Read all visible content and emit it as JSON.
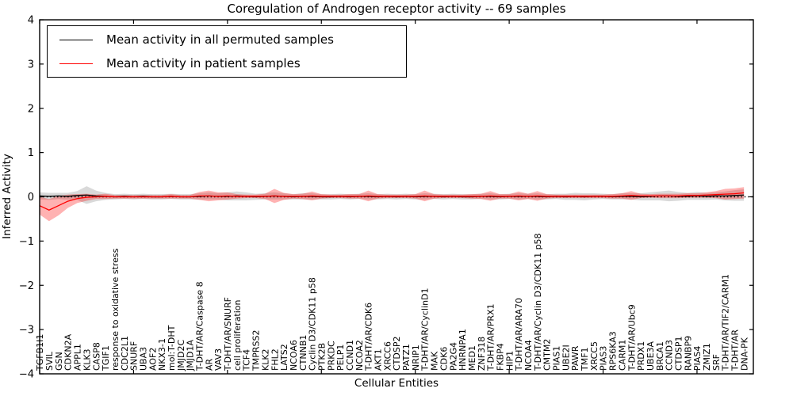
{
  "chart_data": {
    "type": "line",
    "title": "Coregulation of Androgen receptor activity -- 69 samples",
    "xlabel": "Cellular Entities",
    "ylabel": "Inferred Activity",
    "ylim": [
      -4,
      4
    ],
    "grid": false,
    "legend_position": "upper left",
    "yticks": [
      {
        "v": 4,
        "label": "4"
      },
      {
        "v": 3,
        "label": "3"
      },
      {
        "v": 2,
        "label": "2"
      },
      {
        "v": 1,
        "label": "1"
      },
      {
        "v": 0,
        "label": "0"
      },
      {
        "v": -1,
        "label": "−1"
      },
      {
        "v": -2,
        "label": "−2"
      },
      {
        "v": -3,
        "label": "−3"
      },
      {
        "v": -4,
        "label": "−4"
      }
    ],
    "xticks_major": [
      0,
      10,
      20,
      30,
      40,
      50,
      60,
      70
    ],
    "zero_line": {
      "style": "dotted",
      "color": "#000000",
      "y": 0
    },
    "categories": [
      "TGFB1I1",
      "SVIL",
      "GSN",
      "CDKN2A",
      "APPL1",
      "KLK3",
      "CASP8",
      "TGIF1",
      "response to oxidative stress",
      "CDC2L1",
      "SNURF",
      "UBA3",
      "AOF2",
      "NKX3-1",
      "mol:T-DHT",
      "JMJD2C",
      "JMJD1A",
      "T-DHT/AR/Caspase 8",
      "AR",
      "VAV3",
      "T-DHT/AR/SNURF",
      "cell proliferation",
      "TCF4",
      "TMPRSS2",
      "KLK2",
      "FHL2",
      "LATS2",
      "NCOA6",
      "CTNNB1",
      "Cyclin D3/CDK11 p58",
      "PTK2B",
      "PRKDC",
      "PELP1",
      "CCND1",
      "NCOA2",
      "T-DHT/AR/CDK6",
      "AKT1",
      "XRCC6",
      "CTDSP2",
      "PATZ1",
      "NRIP1",
      "T-DHT/AR/CyclinD1",
      "MAK",
      "CDK6",
      "PA2G4",
      "HNRNPA1",
      "MED1",
      "ZNF318",
      "T-DHT/AR/PRX1",
      "FKBP4",
      "HIP1",
      "T-DHT/AR/ARA70",
      "NCOA4",
      "T-DHT/AR/Cyclin D3/CDK11 p58",
      "CMTM2",
      "PIAS1",
      "UBE2I",
      "PAWR",
      "TMF1",
      "XRCC5",
      "PIAS3",
      "RPS6KA3",
      "CARM1",
      "T-DHT/AR/Ubc9",
      "PRDX1",
      "UBE3A",
      "BRCA1",
      "CCND3",
      "CTDSP1",
      "RANBP9",
      "PIAS4",
      "ZMIZ1",
      "SRF",
      "T-DHT/AR/TIF2/CARM1",
      "T-DHT/AR",
      "DNA-PK"
    ],
    "series": [
      {
        "name": "Mean activity in all permuted samples",
        "color": "#000000",
        "band_color": "#888888",
        "band_opacity": 0.32,
        "values": [
          0.02,
          0.01,
          0.02,
          0.01,
          0.03,
          0.04,
          0.02,
          0.01,
          0.0,
          0.01,
          0.0,
          0.01,
          0.0,
          0.0,
          0.01,
          0.0,
          0.0,
          0.01,
          0.02,
          0.01,
          0.01,
          0.02,
          0.01,
          0.0,
          0.01,
          0.02,
          0.01,
          0.0,
          0.01,
          0.01,
          0.0,
          0.0,
          0.01,
          0.0,
          0.01,
          0.01,
          0.0,
          0.01,
          0.0,
          0.01,
          0.0,
          0.01,
          0.01,
          0.0,
          0.01,
          0.0,
          0.0,
          0.01,
          0.01,
          0.0,
          0.01,
          0.01,
          0.01,
          0.01,
          0.0,
          0.01,
          0.0,
          0.01,
          0.0,
          0.01,
          0.01,
          0.0,
          0.01,
          0.01,
          0.0,
          0.01,
          0.02,
          0.02,
          0.01,
          0.01,
          0.02,
          0.01,
          0.02,
          0.02,
          0.03,
          0.04
        ],
        "band_halfwidth": [
          0.08,
          0.08,
          0.07,
          0.08,
          0.1,
          0.2,
          0.12,
          0.08,
          0.06,
          0.06,
          0.06,
          0.06,
          0.06,
          0.06,
          0.06,
          0.06,
          0.06,
          0.07,
          0.08,
          0.07,
          0.09,
          0.1,
          0.09,
          0.07,
          0.07,
          0.08,
          0.07,
          0.06,
          0.07,
          0.07,
          0.06,
          0.06,
          0.06,
          0.06,
          0.06,
          0.07,
          0.06,
          0.06,
          0.06,
          0.06,
          0.06,
          0.07,
          0.06,
          0.06,
          0.06,
          0.06,
          0.06,
          0.06,
          0.07,
          0.06,
          0.06,
          0.07,
          0.06,
          0.07,
          0.06,
          0.06,
          0.07,
          0.08,
          0.08,
          0.07,
          0.06,
          0.06,
          0.07,
          0.07,
          0.08,
          0.09,
          0.1,
          0.12,
          0.1,
          0.08,
          0.09,
          0.08,
          0.08,
          0.1,
          0.12,
          0.13
        ]
      },
      {
        "name": "Mean activity in patient samples",
        "color": "#ff0000",
        "band_color": "#ff0000",
        "band_opacity": 0.3,
        "values": [
          -0.2,
          -0.3,
          -0.2,
          -0.1,
          -0.04,
          -0.01,
          0.0,
          0.01,
          0.0,
          0.0,
          0.0,
          0.0,
          0.0,
          0.0,
          0.01,
          0.0,
          0.0,
          0.02,
          0.02,
          0.01,
          0.02,
          0.01,
          0.01,
          0.01,
          0.01,
          0.02,
          0.01,
          0.01,
          0.01,
          0.02,
          0.01,
          0.01,
          0.01,
          0.01,
          0.01,
          0.02,
          0.01,
          0.01,
          0.01,
          0.01,
          0.01,
          0.02,
          0.01,
          0.01,
          0.01,
          0.01,
          0.01,
          0.01,
          0.02,
          0.01,
          0.01,
          0.02,
          0.01,
          0.02,
          0.01,
          0.01,
          0.01,
          0.01,
          0.01,
          0.01,
          0.01,
          0.01,
          0.02,
          0.03,
          0.02,
          0.02,
          0.02,
          0.02,
          0.02,
          0.03,
          0.03,
          0.04,
          0.05,
          0.06,
          0.07,
          0.09
        ],
        "band_halfwidth": [
          0.2,
          0.25,
          0.22,
          0.15,
          0.1,
          0.08,
          0.05,
          0.06,
          0.04,
          0.04,
          0.04,
          0.04,
          0.04,
          0.04,
          0.05,
          0.04,
          0.04,
          0.09,
          0.12,
          0.09,
          0.08,
          0.05,
          0.04,
          0.04,
          0.06,
          0.16,
          0.08,
          0.05,
          0.06,
          0.1,
          0.05,
          0.04,
          0.04,
          0.05,
          0.05,
          0.12,
          0.05,
          0.04,
          0.04,
          0.04,
          0.05,
          0.12,
          0.05,
          0.04,
          0.04,
          0.04,
          0.05,
          0.06,
          0.11,
          0.05,
          0.05,
          0.1,
          0.06,
          0.11,
          0.05,
          0.04,
          0.04,
          0.04,
          0.04,
          0.04,
          0.04,
          0.05,
          0.06,
          0.1,
          0.05,
          0.04,
          0.05,
          0.05,
          0.05,
          0.05,
          0.05,
          0.06,
          0.08,
          0.12,
          0.12,
          0.13
        ]
      }
    ]
  }
}
